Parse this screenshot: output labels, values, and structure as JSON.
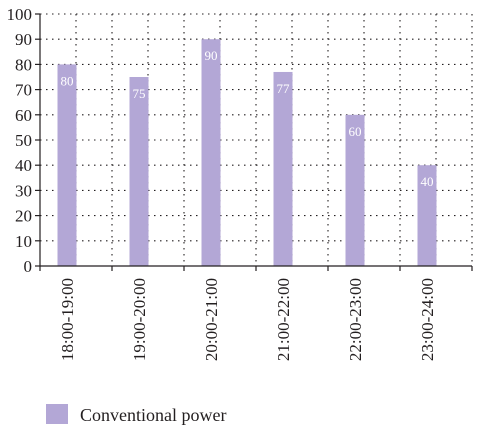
{
  "colors": {
    "bar": "#b3a7d6",
    "grid": "#231f20",
    "axis": "#231f20",
    "text": "#231f20",
    "data_label": "#ffffff"
  },
  "chart_data": {
    "type": "bar",
    "categories": [
      "18:00-19:00",
      "19:00-20:00",
      "20:00-21:00",
      "21:00-22:00",
      "22:00-23:00",
      "23:00-24:00"
    ],
    "series": [
      {
        "name": "Conventional power",
        "values": [
          80,
          75,
          90,
          77,
          60,
          40
        ]
      }
    ],
    "data_labels": [
      "80",
      "75",
      "90",
      "77",
      "60",
      "40"
    ],
    "title": "",
    "xlabel": "",
    "ylabel": "",
    "ylim": [
      0,
      100
    ],
    "yticks": [
      0,
      10,
      20,
      30,
      40,
      50,
      60,
      70,
      80,
      90,
      100
    ],
    "grid": true,
    "grid_style": "dotted",
    "x_tick_rotation": "vertical",
    "legend": {
      "position": "bottom-left",
      "entries": [
        "Conventional power"
      ]
    }
  }
}
